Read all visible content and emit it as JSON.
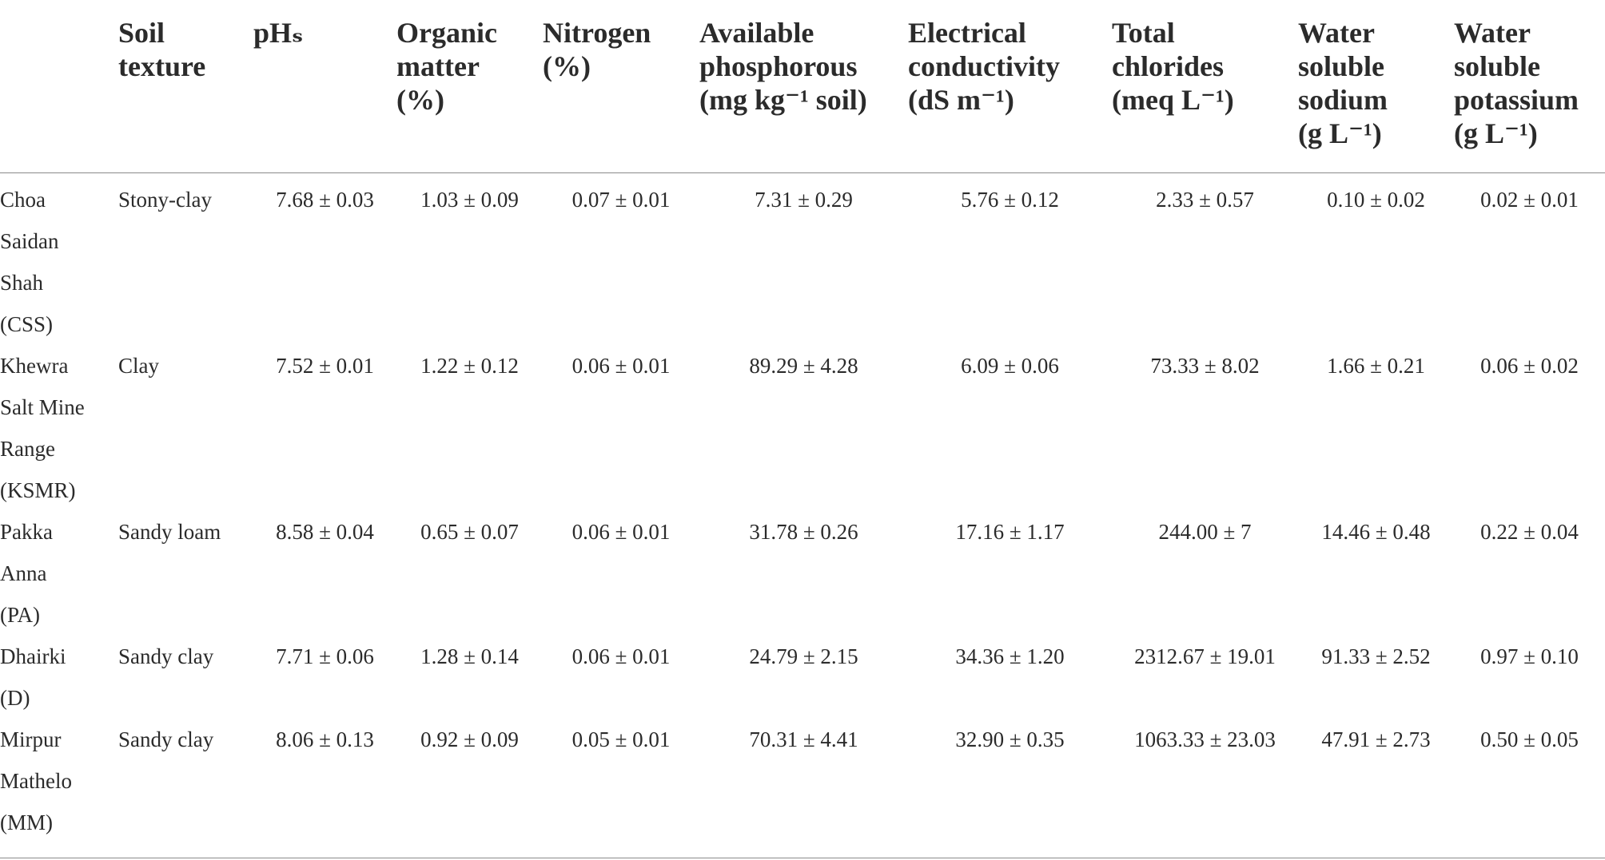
{
  "table": {
    "columns": [
      {
        "lines": [
          ""
        ]
      },
      {
        "lines": [
          "Soil",
          "texture"
        ]
      },
      {
        "lines": [
          "pHₛ"
        ]
      },
      {
        "lines": [
          "Organic",
          "matter",
          "(%)"
        ]
      },
      {
        "lines": [
          "Nitrogen",
          "(%)"
        ]
      },
      {
        "lines": [
          "Available",
          "phosphorous",
          "(mg kg⁻¹ soil)"
        ]
      },
      {
        "lines": [
          "Electrical",
          "conductivity",
          "(dS m⁻¹)"
        ]
      },
      {
        "lines": [
          "Total",
          "chlorides",
          "(meq L⁻¹)"
        ]
      },
      {
        "lines": [
          "Water",
          "soluble",
          "sodium",
          "(g L⁻¹)"
        ]
      },
      {
        "lines": [
          "Water",
          "soluble",
          "potassium",
          "(g L⁻¹)"
        ]
      }
    ],
    "rows": [
      {
        "location_lines": [
          "Choa",
          "Saidan",
          "Shah",
          "(CSS)"
        ],
        "cells": [
          "Stony-clay",
          "7.68 ± 0.03",
          "1.03 ± 0.09",
          "0.07 ± 0.01",
          "7.31 ± 0.29",
          "5.76 ± 0.12",
          "2.33 ± 0.57",
          "0.10 ± 0.02",
          "0.02 ± 0.01"
        ]
      },
      {
        "location_lines": [
          "Khewra",
          "Salt Mine",
          "Range",
          "(KSMR)"
        ],
        "cells": [
          "Clay",
          "7.52 ± 0.01",
          "1.22 ± 0.12",
          "0.06 ± 0.01",
          "89.29 ± 4.28",
          "6.09 ± 0.06",
          "73.33 ± 8.02",
          "1.66 ± 0.21",
          "0.06 ± 0.02"
        ]
      },
      {
        "location_lines": [
          "Pakka",
          "Anna",
          "(PA)"
        ],
        "cells": [
          "Sandy loam",
          "8.58 ± 0.04",
          "0.65 ± 0.07",
          "0.06 ± 0.01",
          "31.78 ± 0.26",
          "17.16 ± 1.17",
          "244.00 ± 7",
          "14.46 ± 0.48",
          "0.22 ± 0.04"
        ]
      },
      {
        "location_lines": [
          "Dhairki",
          "(D)"
        ],
        "cells": [
          "Sandy clay",
          "7.71 ± 0.06",
          "1.28 ± 0.14",
          "0.06 ± 0.01",
          "24.79 ± 2.15",
          "34.36 ± 1.20",
          "2312.67 ± 19.01",
          "91.33 ± 2.52",
          "0.97 ± 0.10"
        ]
      },
      {
        "location_lines": [
          "Mirpur",
          "Mathelo",
          "(MM)"
        ],
        "cells": [
          "Sandy clay",
          "8.06 ± 0.13",
          "0.92 ± 0.09",
          "0.05 ± 0.01",
          "70.31 ± 4.41",
          "32.90 ± 0.35",
          "1063.33 ± 23.03",
          "47.91 ± 2.73",
          "0.50 ± 0.05"
        ]
      }
    ]
  }
}
